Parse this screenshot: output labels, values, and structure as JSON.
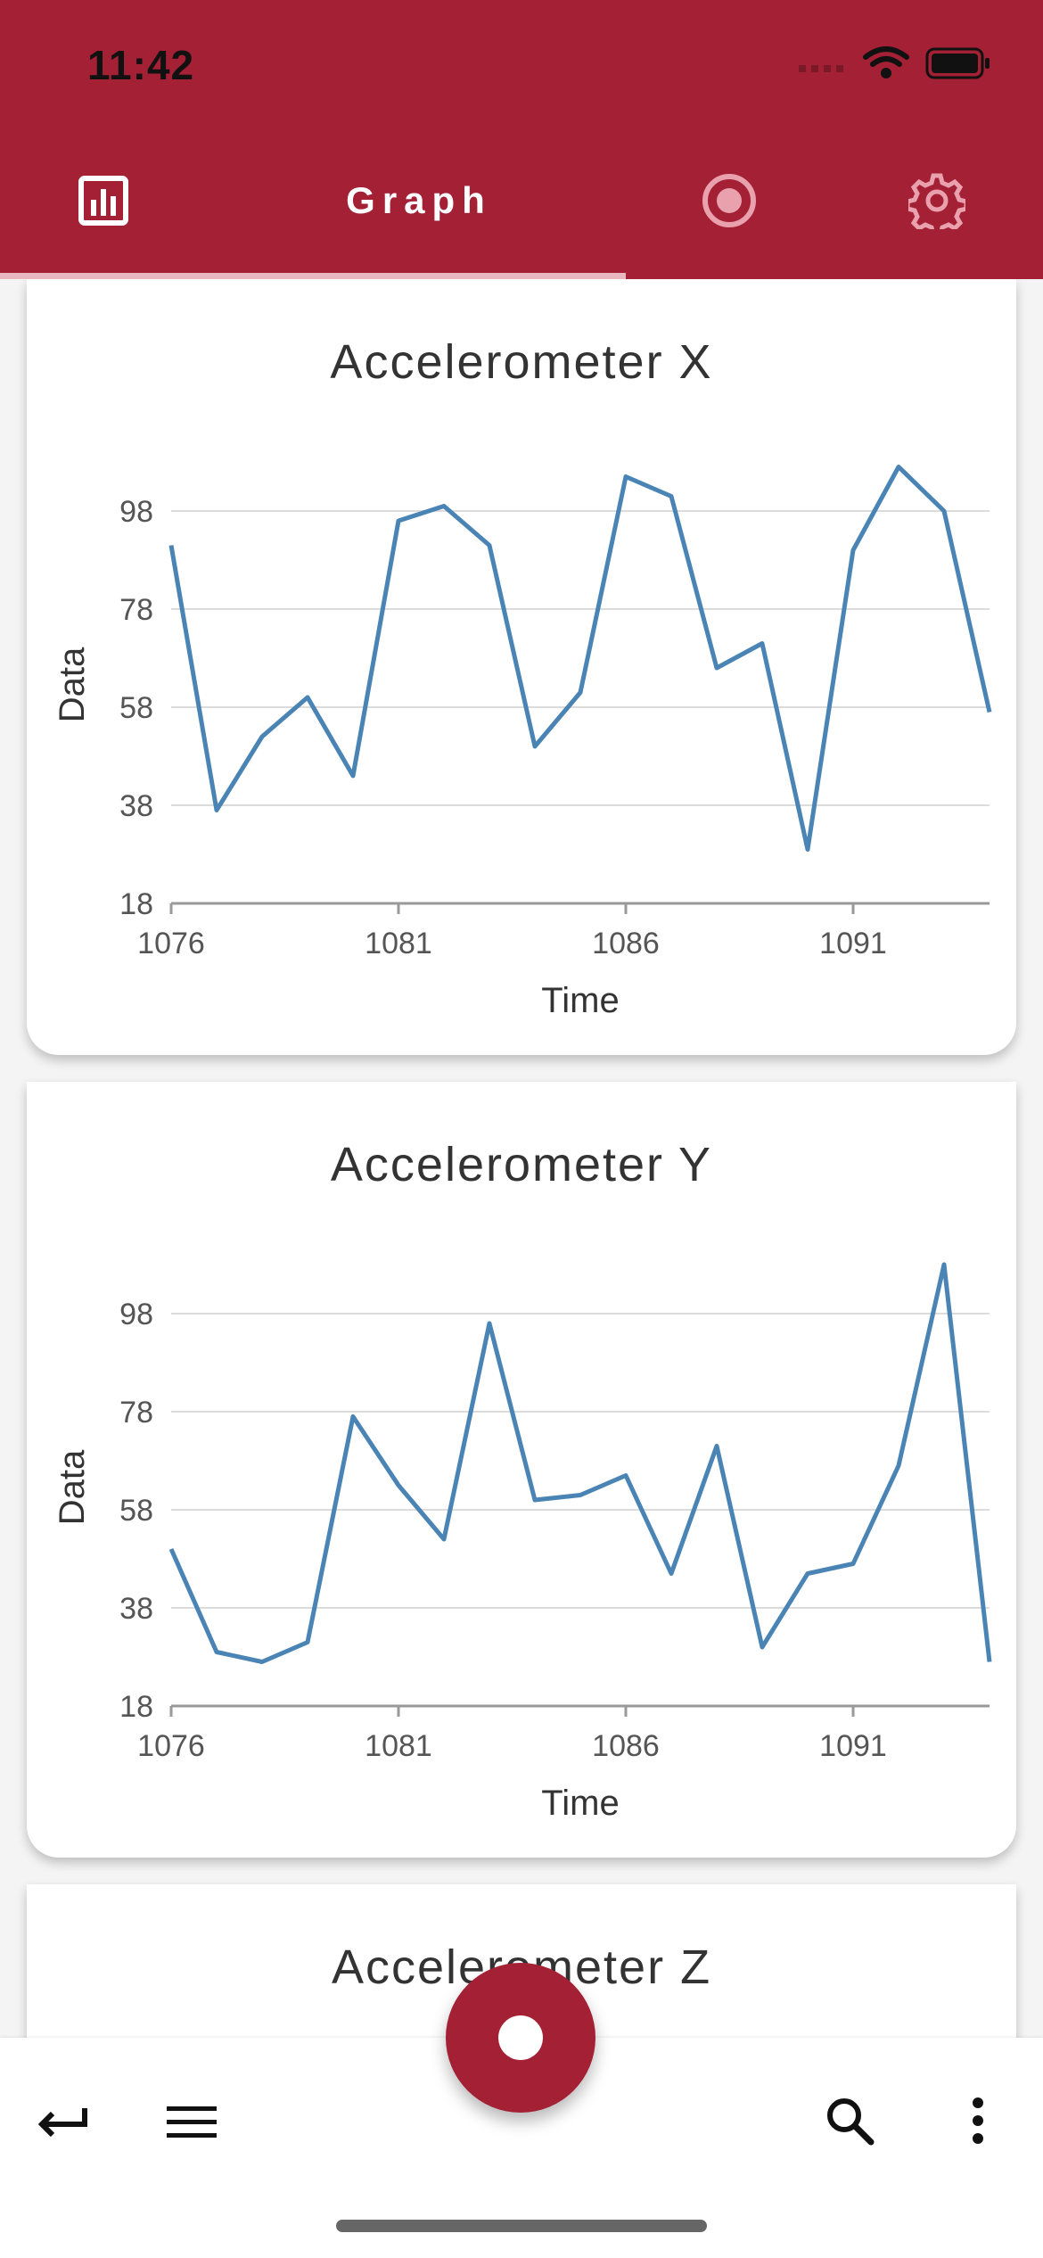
{
  "status": {
    "time": "11:42"
  },
  "appbar": {
    "tab_title": "Graph",
    "icons": [
      "bar-chart-icon",
      "record-icon",
      "gear-icon"
    ]
  },
  "charts": [
    {
      "title": "Accelerometer X",
      "chart_data": {
        "type": "line",
        "title": "Accelerometer X",
        "xlabel": "Time",
        "ylabel": "Data",
        "xlim": [
          1076,
          1094
        ],
        "ylim": [
          18,
          118
        ],
        "xticks": [
          "1076",
          "1081",
          "1086",
          "1091"
        ],
        "yticks": [
          "18",
          "38",
          "58",
          "78",
          "98"
        ],
        "x": [
          1076,
          1077,
          1078,
          1079,
          1080,
          1081,
          1082,
          1083,
          1084,
          1085,
          1086,
          1087,
          1088,
          1089,
          1090,
          1091,
          1092,
          1093,
          1094
        ],
        "series": [
          {
            "values": [
              91,
              37,
              52,
              60,
              44,
              96,
              99,
              91,
              50,
              61,
              105,
              101,
              66,
              71,
              29,
              90,
              107,
              98,
              57
            ]
          }
        ],
        "grid": true,
        "color": "#4a84b5"
      }
    },
    {
      "title": "Accelerometer Y",
      "chart_data": {
        "type": "line",
        "title": "Accelerometer Y",
        "xlabel": "Time",
        "ylabel": "Data",
        "xlim": [
          1076,
          1094
        ],
        "ylim": [
          18,
          118
        ],
        "xticks": [
          "1076",
          "1081",
          "1086",
          "1091"
        ],
        "yticks": [
          "18",
          "38",
          "58",
          "78",
          "98"
        ],
        "x": [
          1076,
          1077,
          1078,
          1079,
          1080,
          1081,
          1082,
          1083,
          1084,
          1085,
          1086,
          1087,
          1088,
          1089,
          1090,
          1091,
          1092,
          1093,
          1094
        ],
        "series": [
          {
            "values": [
              50,
              29,
              27,
              31,
              77,
              63,
              52,
              96,
              60,
              61,
              65,
              45,
              71,
              30,
              45,
              47,
              67,
              108,
              27
            ]
          }
        ],
        "grid": true,
        "color": "#4a84b5"
      }
    },
    {
      "title": "Accelerometer Z"
    }
  ],
  "bottom_bar": {
    "icons": [
      "return-icon",
      "menu-icon",
      "search-icon",
      "more-vert-icon"
    ],
    "fab_icon": "record-icon"
  }
}
